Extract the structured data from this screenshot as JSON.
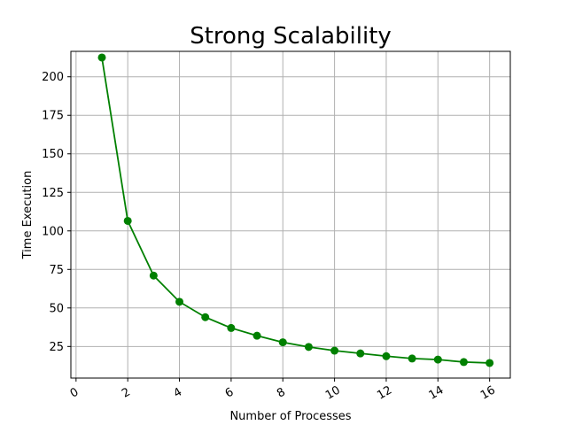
{
  "chart_data": {
    "type": "line",
    "title": "Strong Scalability",
    "xlabel": "Number of Processes",
    "ylabel": "Time Execution",
    "xlim": [
      -0.2,
      16.8
    ],
    "ylim": [
      4.5,
      216.5
    ],
    "xticks": [
      0,
      2,
      4,
      6,
      8,
      10,
      12,
      14,
      16
    ],
    "xtick_labels": [
      "0",
      "2",
      "4",
      "6",
      "8",
      "10",
      "12",
      "14",
      "16"
    ],
    "yticks": [
      25,
      50,
      75,
      100,
      125,
      150,
      175,
      200
    ],
    "ytick_labels": [
      "25",
      "50",
      "75",
      "100",
      "125",
      "150",
      "175",
      "200"
    ],
    "xtick_rotation_deg": 30,
    "grid": true,
    "legend": "none",
    "series": [
      {
        "color": "#008000",
        "marker": "circle",
        "x": [
          1,
          2,
          3,
          4,
          5,
          6,
          7,
          8,
          9,
          10,
          11,
          12,
          13,
          14,
          15,
          16
        ],
        "values": [
          212.5,
          106.5,
          71.0,
          54.0,
          44.0,
          37.0,
          32.0,
          27.7,
          24.7,
          22.3,
          20.5,
          18.7,
          17.2,
          16.5,
          14.9,
          14.3
        ]
      }
    ]
  }
}
